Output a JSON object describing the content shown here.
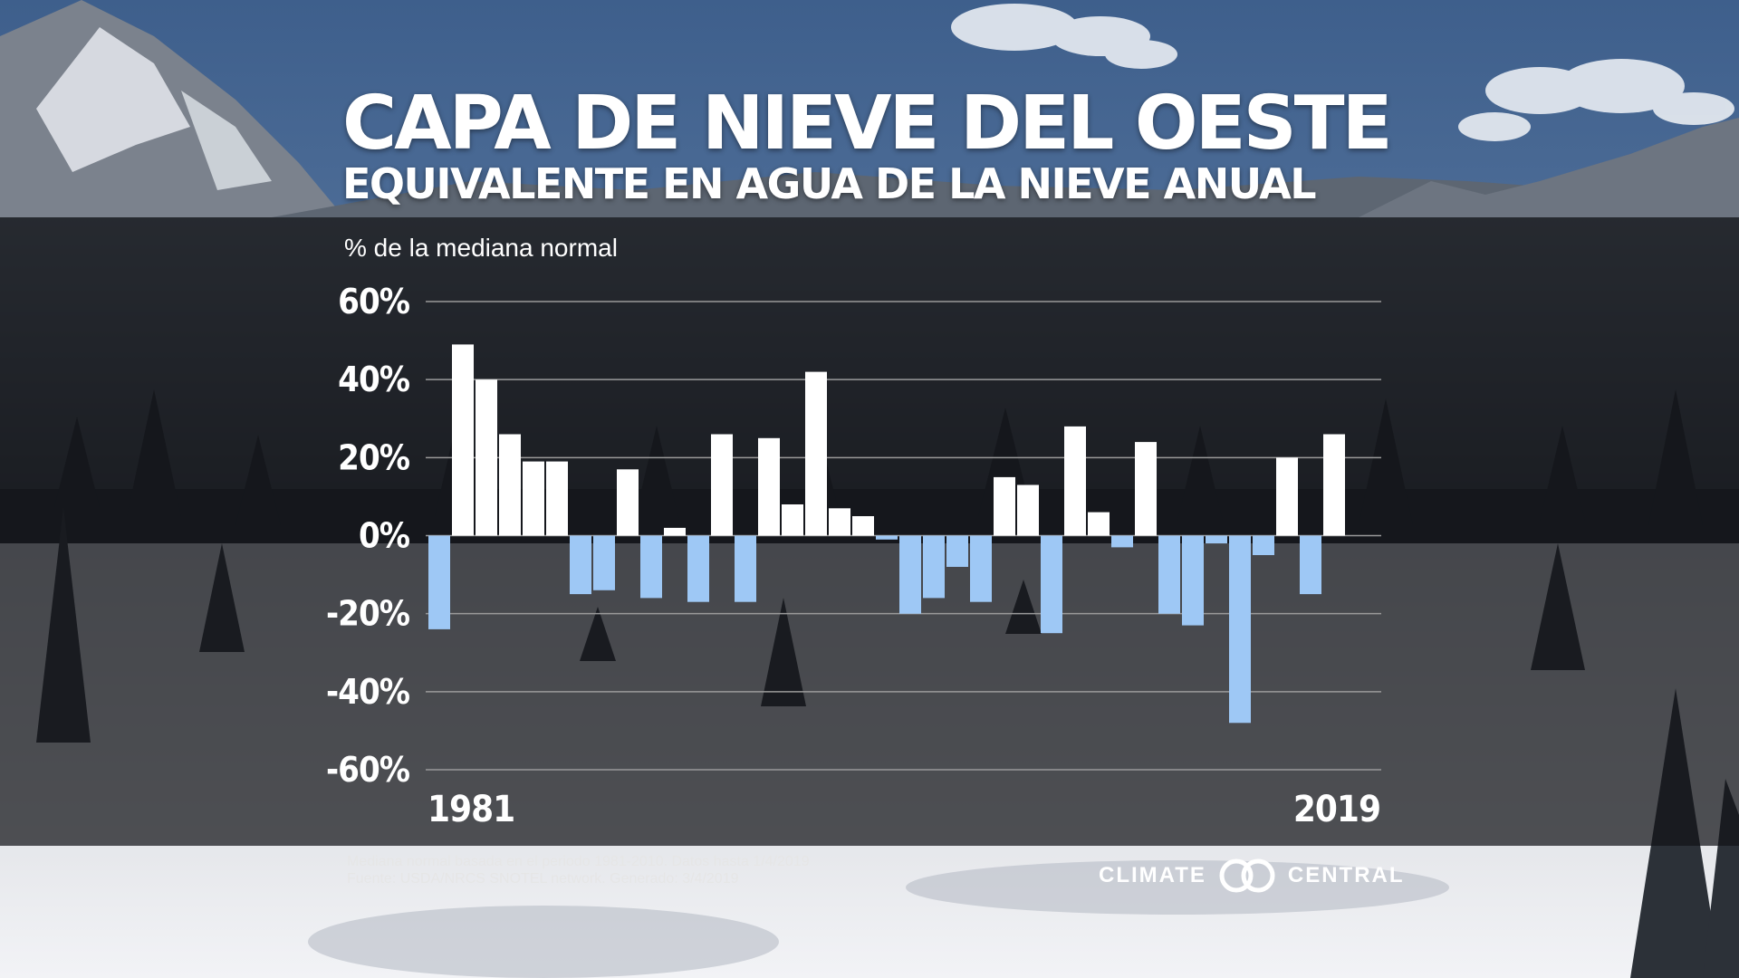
{
  "chart_data": {
    "type": "bar",
    "title": "CAPA DE NIEVE DEL OESTE",
    "subtitle": "EQUIVALENTE EN AGUA DE LA NIEVE ANUAL",
    "ylabel": "% de la mediana normal",
    "xlabel": "",
    "ylim": [
      -60,
      60
    ],
    "yticks": [
      60,
      40,
      20,
      0,
      -20,
      -40,
      -60
    ],
    "ytick_labels": [
      "60%",
      "40%",
      "20%",
      "0%",
      "-20%",
      "-40%",
      "-60%"
    ],
    "x_range_labels": [
      "1981",
      "2019"
    ],
    "categories": [
      "1981",
      "1982",
      "1983",
      "1984",
      "1985",
      "1986",
      "1987",
      "1988",
      "1989",
      "1990",
      "1991",
      "1992",
      "1993",
      "1994",
      "1995",
      "1996",
      "1997",
      "1998",
      "1999",
      "2000",
      "2001",
      "2002",
      "2003",
      "2004",
      "2005",
      "2006",
      "2007",
      "2008",
      "2009",
      "2010",
      "2011",
      "2012",
      "2013",
      "2014",
      "2015",
      "2016",
      "2017",
      "2018",
      "2019"
    ],
    "values": [
      -24,
      49,
      40,
      26,
      19,
      19,
      -15,
      -14,
      17,
      -16,
      2,
      -17,
      26,
      -17,
      25,
      8,
      42,
      7,
      5,
      -1,
      -20,
      -16,
      -8,
      -17,
      15,
      13,
      -25,
      28,
      6,
      -3,
      24,
      -20,
      -23,
      -2,
      -48,
      -5,
      20,
      -15,
      26
    ],
    "grid": true,
    "colors": {
      "positive": "#ffffff",
      "negative": "#9ec8f5",
      "gridline": "#9a9a9a"
    }
  },
  "footer": {
    "note": "Mediana normal basada en el periodo 1981-2010. Datos hasta 1/4/2019",
    "source": "Fuente: USDA/NRCS SNOTEL network. Generado: 3/4/2019"
  },
  "logo": {
    "left": "CLIMATE",
    "right": "CENTRAL"
  }
}
